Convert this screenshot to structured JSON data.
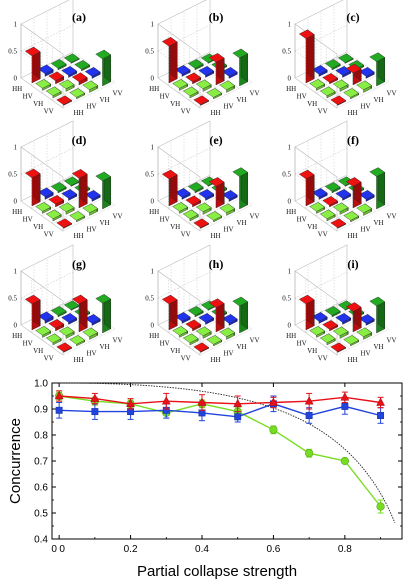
{
  "colors": {
    "hist_red": "#ee1111",
    "hist_green": "#22aa22",
    "hist_blue": "#2233ee",
    "hist_light_green": "#88ee44",
    "series_red": "#e8101a",
    "series_blue": "#2244dd",
    "series_green": "#77dd22",
    "theory_curve": "#222222"
  },
  "histograms": {
    "basis_labels": [
      "HH",
      "HV",
      "VH",
      "VV"
    ],
    "z_ticks": [
      "1",
      "0.5",
      "0"
    ],
    "panels": [
      {
        "label": "(a)",
        "heights": [
          [
            0.5,
            0.05,
            0.03,
            0.0
          ],
          [
            0.04,
            0.08,
            0.04,
            0.03
          ],
          [
            0.04,
            0.05,
            0.08,
            0.04
          ],
          [
            0.0,
            0.03,
            0.05,
            0.5
          ]
        ],
        "main_heights": [
          0.5,
          0.06,
          0.06,
          0.5
        ]
      },
      {
        "label": "(b)",
        "heights": [
          [
            0.5,
            0.04,
            0.03,
            0.0
          ],
          [
            0.04,
            0.05,
            0.04,
            0.03
          ],
          [
            0.04,
            0.05,
            0.05,
            0.04
          ],
          [
            0.0,
            0.03,
            0.05,
            0.5
          ]
        ],
        "main_heights": [
          0.68,
          0.04,
          0.42,
          0.52
        ]
      },
      {
        "label": "(c)",
        "heights": [
          [
            0.5,
            0.04,
            0.03,
            0.0
          ],
          [
            0.04,
            0.04,
            0.04,
            0.03
          ],
          [
            0.04,
            0.05,
            0.04,
            0.04
          ],
          [
            0.0,
            0.03,
            0.05,
            0.5
          ]
        ],
        "main_heights": [
          0.82,
          0.03,
          0.22,
          0.45
        ]
      },
      {
        "label": "(d)",
        "heights": [
          [
            0.5,
            0.05,
            0.03,
            0.0
          ],
          [
            0.04,
            0.08,
            0.04,
            0.03
          ],
          [
            0.04,
            0.05,
            0.08,
            0.04
          ],
          [
            0.0,
            0.03,
            0.05,
            0.5
          ]
        ],
        "main_heights": [
          0.52,
          0.05,
          0.55,
          0.52
        ]
      },
      {
        "label": "(e)",
        "heights": [
          [
            0.5,
            0.04,
            0.03,
            0.0
          ],
          [
            0.04,
            0.05,
            0.04,
            0.03
          ],
          [
            0.04,
            0.05,
            0.05,
            0.04
          ],
          [
            0.0,
            0.03,
            0.05,
            0.5
          ]
        ],
        "main_heights": [
          0.5,
          0.04,
          0.4,
          0.6
        ]
      },
      {
        "label": "(f)",
        "heights": [
          [
            0.5,
            0.04,
            0.03,
            0.0
          ],
          [
            0.04,
            0.04,
            0.04,
            0.03
          ],
          [
            0.04,
            0.05,
            0.04,
            0.04
          ],
          [
            0.0,
            0.03,
            0.05,
            0.5
          ]
        ],
        "main_heights": [
          0.5,
          0.03,
          0.4,
          0.6
        ]
      },
      {
        "label": "(g)",
        "heights": [
          [
            0.5,
            0.05,
            0.03,
            0.0
          ],
          [
            0.04,
            0.08,
            0.04,
            0.03
          ],
          [
            0.04,
            0.05,
            0.08,
            0.04
          ],
          [
            0.0,
            0.03,
            0.05,
            0.5
          ]
        ],
        "main_heights": [
          0.48,
          0.05,
          0.52,
          0.55
        ]
      },
      {
        "label": "(h)",
        "heights": [
          [
            0.5,
            0.04,
            0.03,
            0.0
          ],
          [
            0.04,
            0.05,
            0.04,
            0.03
          ],
          [
            0.04,
            0.05,
            0.05,
            0.04
          ],
          [
            0.0,
            0.03,
            0.05,
            0.5
          ]
        ],
        "main_heights": [
          0.48,
          0.04,
          0.45,
          0.5
        ]
      },
      {
        "label": "(i)",
        "heights": [
          [
            0.5,
            0.04,
            0.03,
            0.0
          ],
          [
            0.04,
            0.04,
            0.04,
            0.03
          ],
          [
            0.04,
            0.05,
            0.04,
            0.04
          ],
          [
            0.0,
            0.03,
            0.05,
            0.5
          ]
        ],
        "main_heights": [
          0.48,
          0.03,
          0.38,
          0.5
        ]
      }
    ]
  },
  "chart_data": {
    "type": "line",
    "title": "",
    "xlabel": "Partial collapse strength",
    "ylabel": "Concurrence",
    "xlim": [
      -0.02,
      0.96
    ],
    "ylim": [
      0.4,
      1.0
    ],
    "x_ticks": [
      0,
      0.2,
      0.4,
      0.6,
      0.8
    ],
    "x_tick_labels": [
      "0",
      "0.2",
      "0.4",
      "0.6",
      "0.8"
    ],
    "y_ticks": [
      0.4,
      0.5,
      0.6,
      0.7,
      0.8,
      0.9,
      1.0
    ],
    "y_tick_labels": [
      "0.4",
      "0.5",
      "0.6",
      "0.7",
      "0.8",
      "0.9",
      "1.0"
    ],
    "extra_zero_label": "0",
    "grid": false,
    "series": [
      {
        "marker": "triangle",
        "x": [
          0,
          0.1,
          0.2,
          0.3,
          0.4,
          0.5,
          0.6,
          0.7,
          0.8,
          0.9
        ],
        "values": [
          0.95,
          0.94,
          0.92,
          0.93,
          0.925,
          0.92,
          0.925,
          0.93,
          0.945,
          0.925
        ],
        "errors": [
          0.02,
          0.02,
          0.02,
          0.03,
          0.03,
          0.03,
          0.02,
          0.03,
          0.02,
          0.02
        ]
      },
      {
        "marker": "square",
        "x": [
          0,
          0.1,
          0.2,
          0.3,
          0.4,
          0.5,
          0.6,
          0.7,
          0.8,
          0.9
        ],
        "values": [
          0.895,
          0.89,
          0.89,
          0.895,
          0.885,
          0.87,
          0.92,
          0.875,
          0.91,
          0.875
        ],
        "errors": [
          0.03,
          0.03,
          0.03,
          0.03,
          0.03,
          0.02,
          0.03,
          0.03,
          0.03,
          0.03
        ]
      },
      {
        "marker": "circle",
        "x": [
          0,
          0.1,
          0.2,
          0.3,
          0.4,
          0.5,
          0.6,
          0.7,
          0.8,
          0.9
        ],
        "values": [
          0.95,
          0.93,
          0.92,
          0.885,
          0.92,
          0.89,
          0.82,
          0.73,
          0.7,
          0.525
        ],
        "errors": [
          0.015,
          0.015,
          0.015,
          0.02,
          0.015,
          0.015,
          0.015,
          0.015,
          0.01,
          0.025
        ]
      }
    ],
    "theory": {
      "style": "dotted",
      "formula": "sqrt(1-p)/(1-p/2)"
    }
  }
}
